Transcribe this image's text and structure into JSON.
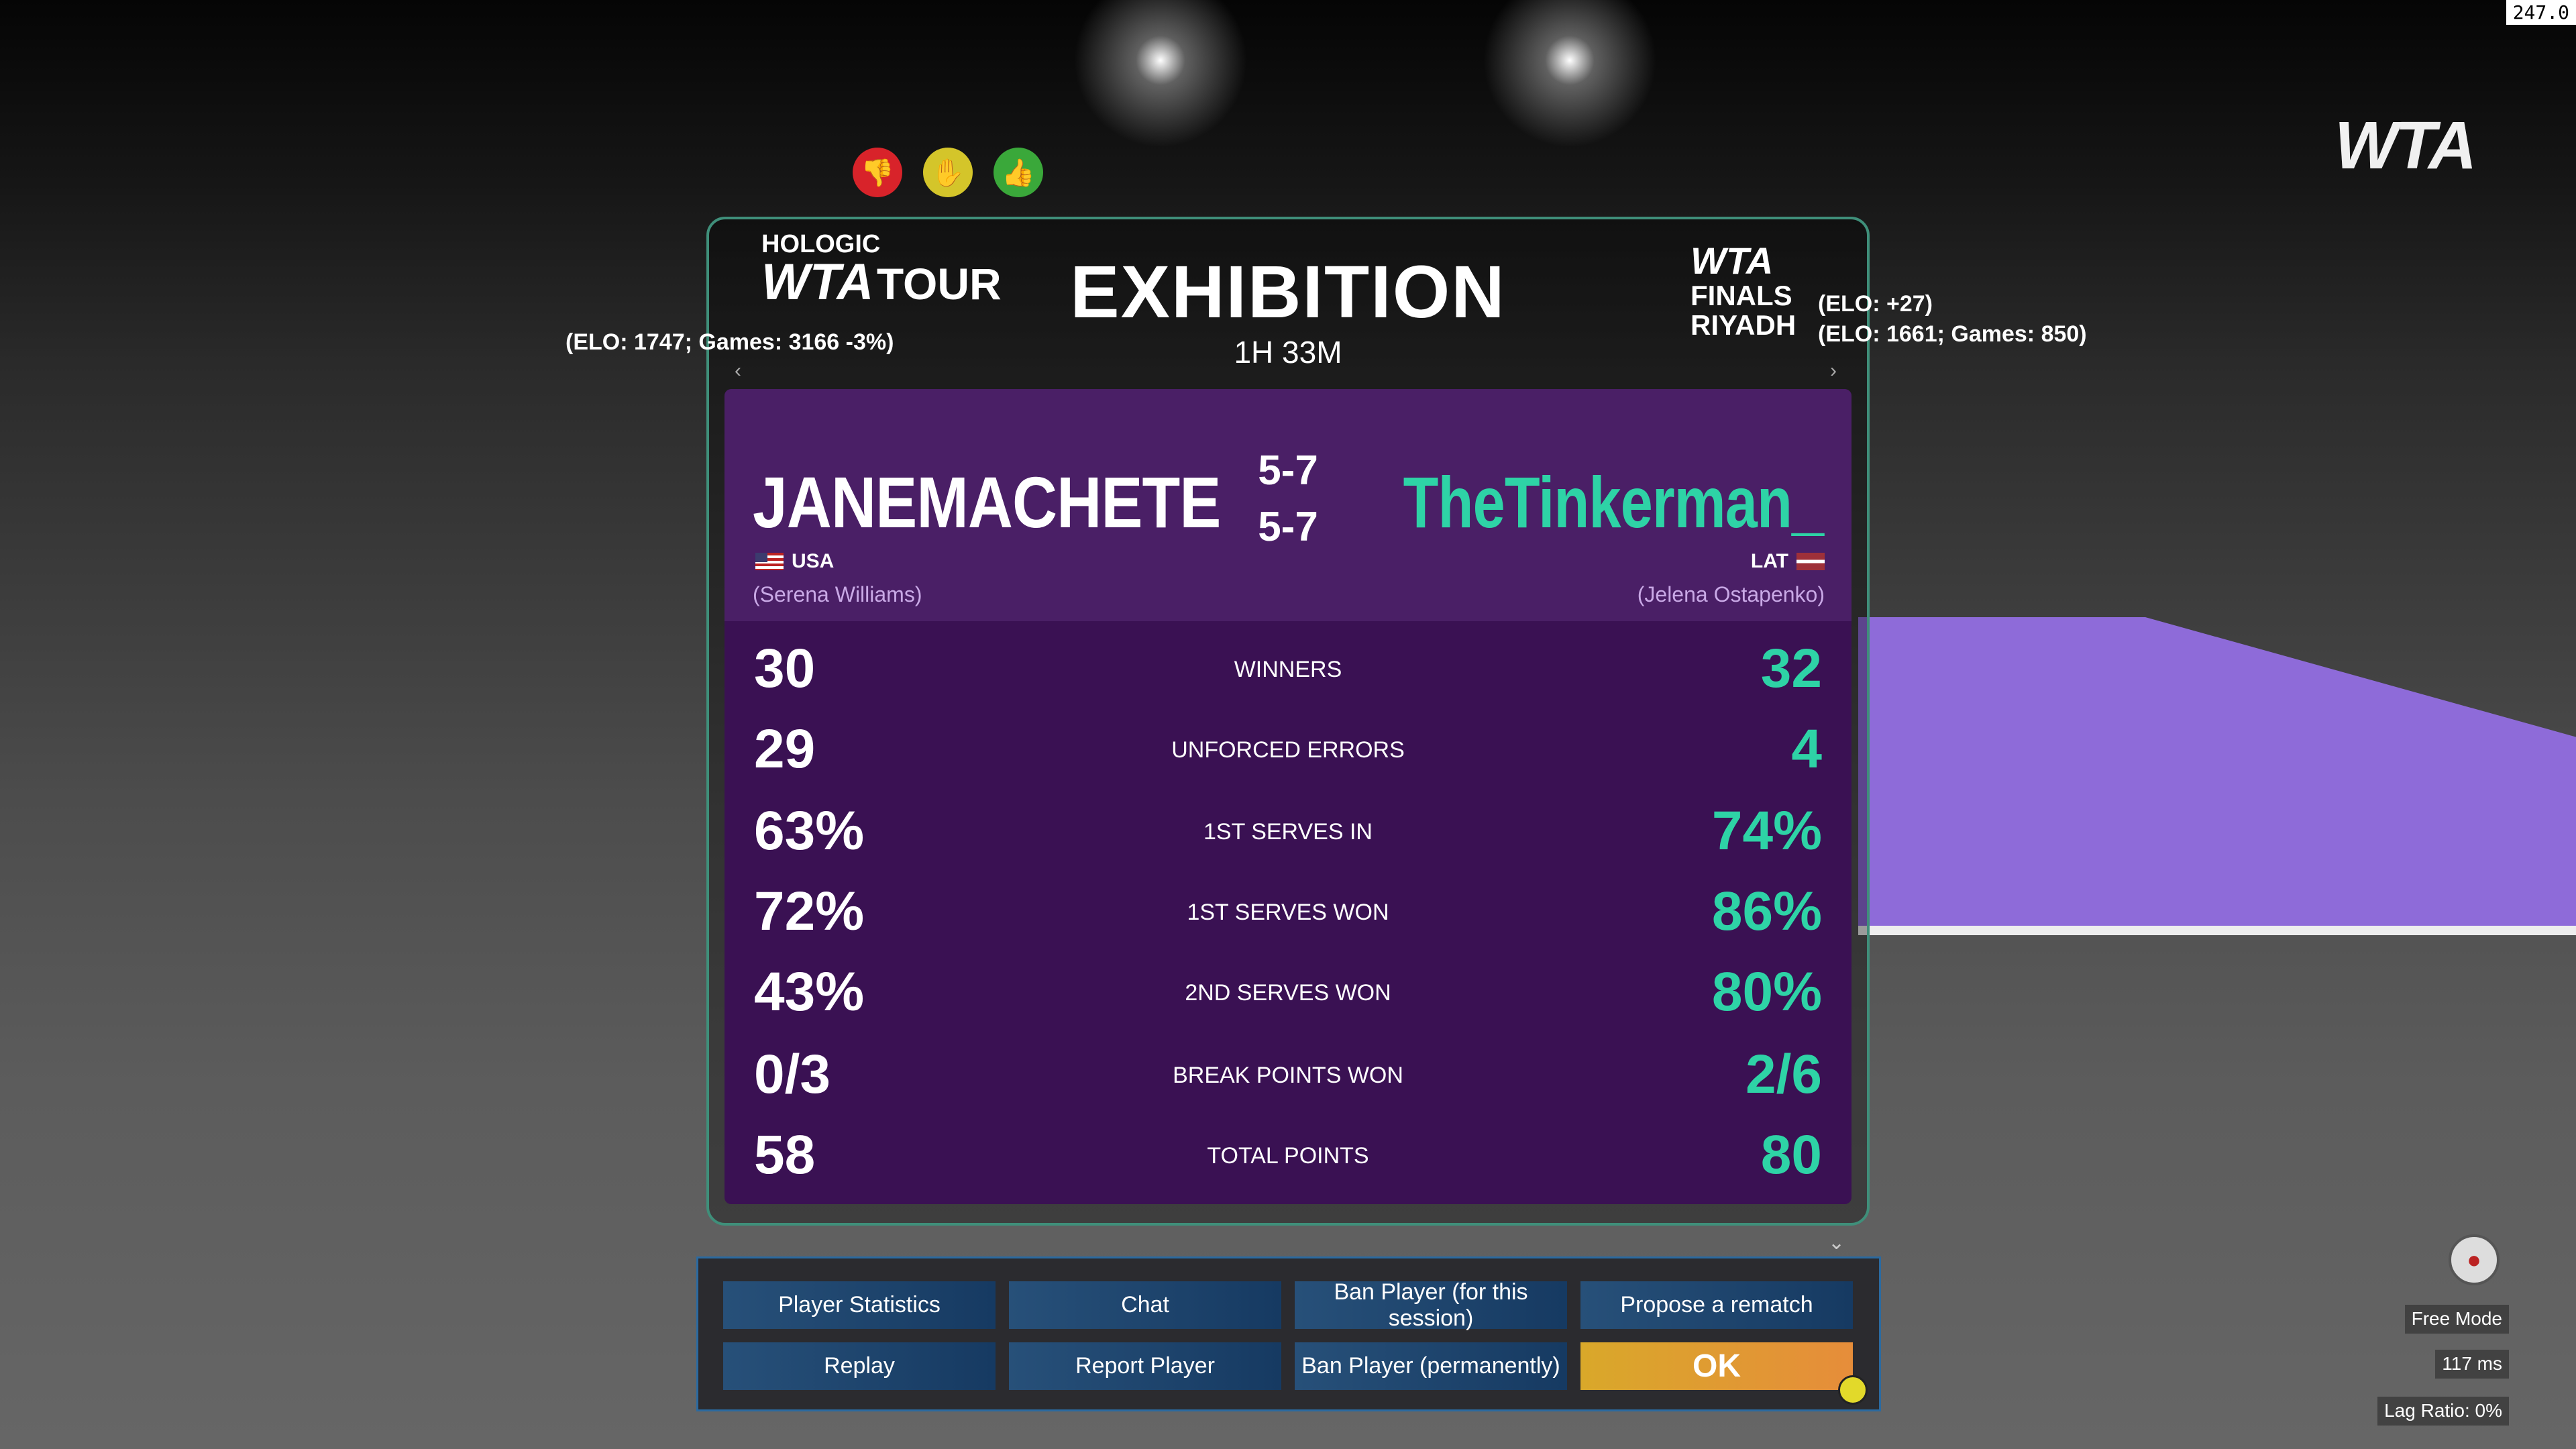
{
  "fps_counter": "247.0",
  "brand_logo": "WTA",
  "reactions": [
    {
      "name": "thumbs-down",
      "color": "#d8232a"
    },
    {
      "name": "neutral-hand",
      "color": "#d4c52a"
    },
    {
      "name": "thumbs-up",
      "color": "#3aa83a"
    }
  ],
  "header": {
    "title": "EXHIBITION",
    "duration": "1H 33M",
    "left_logo_top": "HOLOGIC",
    "left_logo_main": "WTA",
    "left_logo_tour": "TOUR",
    "right_logo_main": "WTA",
    "right_logo_sub1": "FINALS",
    "right_logo_sub2": "RIYADH",
    "left_elo": "(ELO: 1747; Games: 3166 -3%)",
    "right_elo_change": "(ELO: +27)",
    "right_elo": "(ELO: 1661; Games: 850)"
  },
  "players": {
    "left": {
      "name": "JANEMACHETE",
      "nation": "USA",
      "character": "(Serena Williams)"
    },
    "right": {
      "name": "TheTinkerman_",
      "nation": "LAT",
      "character": "(Jelena Ostapenko)"
    }
  },
  "sets": [
    "5-7",
    "5-7"
  ],
  "stats": [
    {
      "label": "WINNERS",
      "left": "30",
      "right": "32"
    },
    {
      "label": "UNFORCED ERRORS",
      "left": "29",
      "right": "4"
    },
    {
      "label": "1ST SERVES IN",
      "left": "63%",
      "right": "74%"
    },
    {
      "label": "1ST SERVES WON",
      "left": "72%",
      "right": "86%"
    },
    {
      "label": "2ND SERVES WON",
      "left": "43%",
      "right": "80%"
    },
    {
      "label": "BREAK POINTS WON",
      "left": "0/3",
      "right": "2/6"
    },
    {
      "label": "TOTAL POINTS",
      "left": "58",
      "right": "80"
    }
  ],
  "buttons": {
    "player_statistics": "Player Statistics",
    "chat": "Chat",
    "ban_session": "Ban Player (for this session)",
    "rematch": "Propose a rematch",
    "replay": "Replay",
    "report": "Report Player",
    "ban_permanent": "Ban Player (permanently)",
    "ok": "OK"
  },
  "status": {
    "mode": "Free Mode",
    "ping": "117 ms",
    "lag_ratio": "Lag Ratio: 0%"
  },
  "colors": {
    "accent": "#2ed3a6",
    "panel": "#3a1153",
    "ok": "#e0a030",
    "button": "#1f4870"
  }
}
